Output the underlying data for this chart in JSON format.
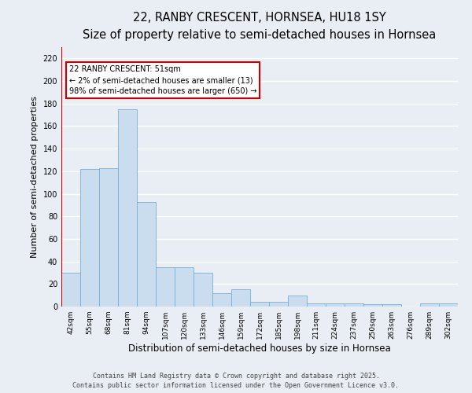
{
  "title_line1": "22, RANBY CRESCENT, HORNSEA, HU18 1SY",
  "title_line2": "Size of property relative to semi-detached houses in Hornsea",
  "xlabel": "Distribution of semi-detached houses by size in Hornsea",
  "ylabel": "Number of semi-detached properties",
  "categories": [
    "42sqm",
    "55sqm",
    "68sqm",
    "81sqm",
    "94sqm",
    "107sqm",
    "120sqm",
    "133sqm",
    "146sqm",
    "159sqm",
    "172sqm",
    "185sqm",
    "198sqm",
    "211sqm",
    "224sqm",
    "237sqm",
    "250sqm",
    "263sqm",
    "276sqm",
    "289sqm",
    "302sqm"
  ],
  "values": [
    30,
    122,
    123,
    175,
    93,
    35,
    35,
    30,
    12,
    15,
    4,
    4,
    10,
    3,
    3,
    3,
    2,
    2,
    0,
    3,
    3
  ],
  "bar_color": "#c9ddef",
  "bar_edge_color": "#7aafd4",
  "vline_x": 0,
  "vline_color": "#cc0000",
  "annotation_text": "22 RANBY CRESCENT: 51sqm\n← 2% of semi-detached houses are smaller (13)\n98% of semi-detached houses are larger (650) →",
  "annotation_box_color": "#ffffff",
  "annotation_box_edge": "#cc0000",
  "ylim": [
    0,
    230
  ],
  "yticks": [
    0,
    20,
    40,
    60,
    80,
    100,
    120,
    140,
    160,
    180,
    200,
    220
  ],
  "footer_text": "Contains HM Land Registry data © Crown copyright and database right 2025.\nContains public sector information licensed under the Open Government Licence v3.0.",
  "background_color": "#e8eef4",
  "plot_background_color": "#e8eef4",
  "grid_color": "#ffffff",
  "title_fontsize": 10.5,
  "subtitle_fontsize": 9,
  "tick_fontsize": 6.5,
  "ylabel_fontsize": 8,
  "xlabel_fontsize": 8.5,
  "footer_fontsize": 6
}
